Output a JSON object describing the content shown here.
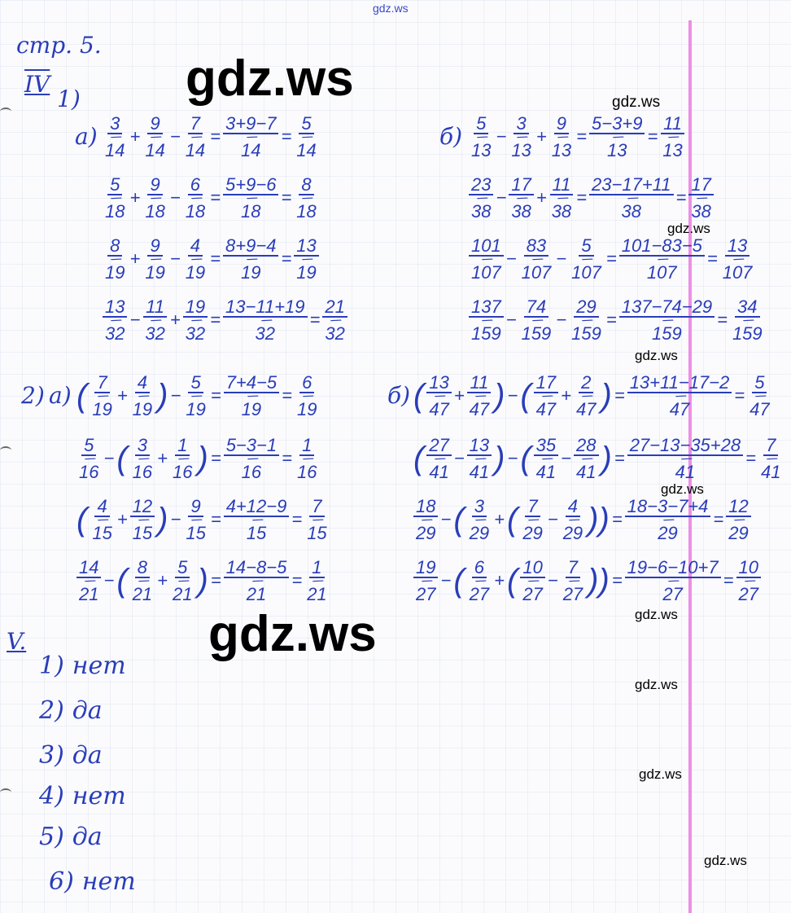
{
  "header": {
    "page": "стр. 5.",
    "section4": "IV",
    "section5": "V."
  },
  "watermarks": {
    "text": "gdz.ws"
  },
  "ink_color": "#2a3db8",
  "task1": {
    "label": "1)",
    "a": {
      "label": "а)",
      "rows": [
        [
          "3/14",
          "+",
          "9/14",
          "−",
          "7/14",
          "=",
          "3+9−7/14",
          "=",
          "5/14"
        ],
        [
          "5/18",
          "+",
          "9/18",
          "−",
          "6/18",
          "=",
          "5+9−6/18",
          "=",
          "8/18"
        ],
        [
          "8/19",
          "+",
          "9/19",
          "−",
          "4/19",
          "=",
          "8+9−4/19",
          "=",
          "13/19"
        ],
        [
          "13/32",
          "−",
          "11/32",
          "+",
          "19/32",
          "=",
          "13−11+19/32",
          "=",
          "21/32"
        ]
      ]
    },
    "b": {
      "label": "б)",
      "rows": [
        [
          "5/13",
          "−",
          "3/13",
          "+",
          "9/13",
          "=",
          "5−3+9/13",
          "=",
          "11/13"
        ],
        [
          "23/38",
          "−",
          "17/38",
          "+",
          "11/38",
          "=",
          "23−17+11/38",
          "=",
          "17/38"
        ],
        [
          "101/107",
          "−",
          "83/107",
          "−",
          "5/107",
          "=",
          "101−83−5/107",
          "=",
          "13/107"
        ],
        [
          "137/159",
          "−",
          "74/159",
          "−",
          "29/159",
          "=",
          "137−74−29/159",
          "=",
          "34/159"
        ]
      ]
    }
  },
  "task2": {
    "label": "2)",
    "a": {
      "label": "а)",
      "rows": [
        [
          "(",
          "7/19",
          "+",
          "4/19",
          ")",
          "−",
          "5/19",
          "=",
          "7+4−5/19",
          "=",
          "6/19"
        ],
        [
          "5/16",
          "−",
          "(",
          "3/16",
          "+",
          "1/16",
          ")",
          "=",
          "5−3−1/16",
          "=",
          "1/16"
        ],
        [
          "(",
          "4/15",
          "+",
          "12/15",
          ")",
          "−",
          "9/15",
          "=",
          "4+12−9/15",
          "=",
          "7/15"
        ],
        [
          "14/21",
          "−",
          "(",
          "8/21",
          "+",
          "5/21",
          ")",
          "=",
          "14−8−5/21",
          "=",
          "1/21"
        ]
      ]
    },
    "b": {
      "label": "б)",
      "rows": [
        [
          "(",
          "13/47",
          "+",
          "11/47",
          ")",
          "−",
          "(",
          "17/47",
          "+",
          "2/47",
          ")",
          "=",
          "13+11−17−2/47",
          "=",
          "5/47"
        ],
        [
          "(",
          "27/41",
          "−",
          "13/41",
          ")",
          "−",
          "(",
          "35/41",
          "−",
          "28/41",
          ")",
          "=",
          "27−13−35+28/41",
          "=",
          "7/41"
        ],
        [
          "18/29",
          "−",
          "(",
          "3/29",
          "+",
          "(",
          "7/29",
          "−",
          "4/29",
          "))",
          "=",
          "18−3−7+4/29",
          "=",
          "12/29"
        ],
        [
          "19/27",
          "−",
          "(",
          "6/27",
          "+",
          "(",
          "10/27",
          "−",
          "7/27",
          "))",
          "=",
          "19−6−10+7/27",
          "=",
          "10/27"
        ]
      ]
    }
  },
  "section5": {
    "answers": [
      {
        "n": "1)",
        "a": "нет"
      },
      {
        "n": "2)",
        "a": "да"
      },
      {
        "n": "3)",
        "a": "да"
      },
      {
        "n": "4)",
        "a": "нет"
      },
      {
        "n": "5)",
        "a": "да"
      },
      {
        "n": "6)",
        "a": "нет"
      }
    ]
  }
}
